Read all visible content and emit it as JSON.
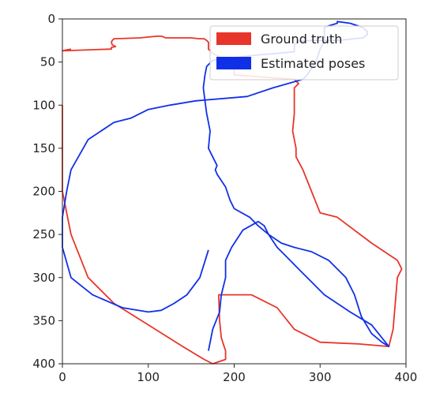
{
  "chart_data": {
    "type": "line",
    "title": "",
    "xlabel": "",
    "ylabel": "",
    "xlim": [
      0,
      400
    ],
    "ylim": [
      400,
      0
    ],
    "y_inverted": true,
    "grid": false,
    "legend_position": "upper-right",
    "x_ticks": [
      0,
      100,
      200,
      300,
      400
    ],
    "y_ticks": [
      0,
      50,
      100,
      150,
      200,
      250,
      300,
      350,
      400
    ],
    "series": [
      {
        "name": "Ground truth",
        "color": "#e8352b",
        "x": [
          0,
          0,
          10,
          30,
          60,
          100,
          140,
          165,
          175,
          190,
          190,
          185,
          183,
          182,
          183,
          203,
          220,
          250,
          270,
          300,
          345,
          380,
          385,
          390,
          395,
          390,
          360,
          320,
          300,
          290,
          280,
          272,
          272,
          268,
          270,
          270,
          275,
          270,
          200,
          200,
          185,
          175,
          170,
          170,
          168,
          165,
          162,
          159,
          150,
          145,
          140,
          120,
          118,
          115,
          110,
          90,
          60,
          58,
          57,
          58,
          62,
          57,
          57,
          0,
          0,
          5,
          10
        ],
        "y": [
          100,
          200,
          250,
          300,
          330,
          355,
          380,
          395,
          400,
          395,
          385,
          370,
          350,
          320,
          320,
          320,
          320,
          335,
          360,
          375,
          377,
          380,
          360,
          300,
          290,
          280,
          260,
          230,
          225,
          200,
          175,
          160,
          150,
          130,
          110,
          80,
          75,
          70,
          65,
          50,
          45,
          40,
          35,
          27,
          25,
          23,
          23,
          23,
          22,
          22,
          22,
          22,
          21,
          20,
          20,
          22,
          23,
          25,
          27,
          30,
          32,
          33,
          35,
          37,
          37,
          36,
          35
        ]
      },
      {
        "name": "Estimated poses",
        "color": "#1030e8",
        "x": [
          170,
          175,
          183,
          185,
          190,
          190,
          197,
          210,
          228,
          235,
          240,
          250,
          260,
          270,
          285,
          305,
          335,
          360,
          380,
          372,
          360,
          348,
          340,
          330,
          310,
          290,
          270,
          255,
          240,
          228,
          218,
          200,
          195,
          190,
          180,
          178,
          180,
          175,
          170,
          172,
          169,
          168,
          166,
          164,
          166,
          168,
          175,
          200,
          225,
          250,
          270,
          270,
          272,
          275,
          290,
          305,
          320,
          350,
          355,
          355,
          350,
          335,
          320,
          320,
          310,
          305,
          305,
          300,
          295,
          285,
          280,
          245,
          215,
          155,
          125,
          100,
          80,
          60,
          30,
          10,
          5,
          0,
          0,
          10,
          35,
          70,
          100,
          115,
          130,
          145,
          160,
          170
        ],
        "y": [
          385,
          360,
          340,
          320,
          300,
          280,
          265,
          245,
          235,
          240,
          250,
          265,
          275,
          285,
          300,
          320,
          340,
          355,
          380,
          375,
          365,
          345,
          320,
          300,
          280,
          270,
          265,
          260,
          250,
          240,
          230,
          220,
          210,
          195,
          180,
          175,
          170,
          160,
          150,
          130,
          115,
          110,
          95,
          80,
          65,
          55,
          48,
          45,
          42,
          40,
          38,
          30,
          28,
          26,
          25,
          25,
          25,
          22,
          18,
          15,
          10,
          5,
          3,
          5,
          8,
          10,
          25,
          35,
          50,
          65,
          70,
          80,
          90,
          95,
          100,
          105,
          115,
          120,
          140,
          175,
          200,
          230,
          265,
          300,
          320,
          335,
          340,
          338,
          330,
          320,
          300,
          268
        ]
      }
    ]
  }
}
